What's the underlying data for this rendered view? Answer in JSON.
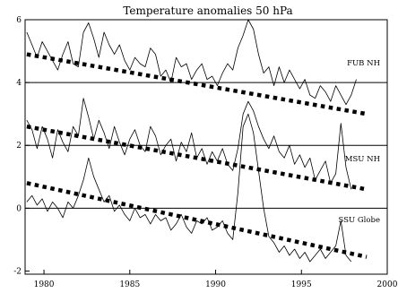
{
  "chart_data": {
    "type": "line",
    "title": "Temperature anomalies 50 hPa",
    "xlabel": "",
    "ylabel": "",
    "xlim": [
      1978.9,
      2000
    ],
    "ylim": [
      -2.1,
      6.0
    ],
    "x_ticks": [
      1980,
      1985,
      1990,
      1995,
      2000
    ],
    "y_ticks": [
      -2,
      0,
      2,
      4,
      6
    ],
    "grid": false,
    "reference_lines": [
      0,
      2,
      4
    ],
    "series": [
      {
        "name": "FUB NH",
        "offset": 4,
        "x": [
          1979.0,
          1979.3,
          1979.6,
          1979.9,
          1980.2,
          1980.5,
          1980.8,
          1981.1,
          1981.4,
          1981.7,
          1982.0,
          1982.3,
          1982.6,
          1982.9,
          1983.2,
          1983.5,
          1983.8,
          1984.1,
          1984.4,
          1984.7,
          1985.0,
          1985.3,
          1985.6,
          1985.9,
          1986.2,
          1986.5,
          1986.8,
          1987.1,
          1987.4,
          1987.7,
          1988.0,
          1988.3,
          1988.6,
          1988.9,
          1989.2,
          1989.5,
          1989.8,
          1990.1,
          1990.4,
          1990.7,
          1991.0,
          1991.3,
          1991.6,
          1991.9,
          1992.2,
          1992.5,
          1992.8,
          1993.1,
          1993.4,
          1993.7,
          1994.0,
          1994.3,
          1994.6,
          1994.9,
          1995.2,
          1995.5,
          1995.8,
          1996.1,
          1996.4,
          1996.7,
          1997.0,
          1997.3,
          1997.6,
          1997.9,
          1998.2
        ],
        "y": [
          5.6,
          5.2,
          4.8,
          5.3,
          5.0,
          4.7,
          4.4,
          4.9,
          5.3,
          4.6,
          4.5,
          5.6,
          5.9,
          5.4,
          4.8,
          5.6,
          5.2,
          4.9,
          5.2,
          4.7,
          4.4,
          4.8,
          4.6,
          4.5,
          5.1,
          4.9,
          4.2,
          4.4,
          4.0,
          4.8,
          4.5,
          4.6,
          4.1,
          4.4,
          4.6,
          4.1,
          4.2,
          3.9,
          4.3,
          4.6,
          4.4,
          5.1,
          5.5,
          6.0,
          5.7,
          4.9,
          4.3,
          4.5,
          3.9,
          4.5,
          4.0,
          4.4,
          4.1,
          3.8,
          4.1,
          3.6,
          3.5,
          3.9,
          3.7,
          3.4,
          3.9,
          3.6,
          3.3,
          3.6,
          4.1
        ]
      },
      {
        "name": "MSU NH",
        "offset": 2,
        "x": [
          1979.0,
          1979.3,
          1979.6,
          1979.9,
          1980.2,
          1980.5,
          1980.8,
          1981.1,
          1981.4,
          1981.7,
          1982.0,
          1982.3,
          1982.6,
          1982.9,
          1983.2,
          1983.5,
          1983.8,
          1984.1,
          1984.4,
          1984.7,
          1985.0,
          1985.3,
          1985.6,
          1985.9,
          1986.2,
          1986.5,
          1986.8,
          1987.1,
          1987.4,
          1987.7,
          1988.0,
          1988.3,
          1988.6,
          1988.9,
          1989.2,
          1989.5,
          1989.8,
          1990.1,
          1990.4,
          1990.7,
          1991.0,
          1991.3,
          1991.6,
          1991.9,
          1992.2,
          1992.5,
          1992.8,
          1993.1,
          1993.4,
          1993.7,
          1994.0,
          1994.3,
          1994.6,
          1994.9,
          1995.2,
          1995.5,
          1995.8,
          1996.1,
          1996.4,
          1996.7,
          1997.0,
          1997.3,
          1997.6,
          1997.9
        ],
        "y": [
          2.8,
          2.5,
          1.9,
          2.6,
          2.2,
          1.6,
          2.5,
          2.1,
          1.8,
          2.6,
          2.3,
          3.5,
          2.9,
          2.2,
          2.8,
          2.4,
          1.9,
          2.6,
          2.1,
          1.7,
          2.2,
          2.5,
          2.0,
          1.8,
          2.6,
          2.3,
          1.7,
          2.0,
          2.2,
          1.5,
          2.1,
          1.8,
          2.4,
          1.6,
          1.9,
          1.4,
          1.8,
          1.5,
          1.9,
          1.4,
          1.2,
          1.9,
          3.0,
          3.4,
          3.1,
          2.6,
          2.2,
          1.9,
          2.3,
          1.8,
          1.6,
          2.0,
          1.4,
          1.7,
          1.3,
          1.6,
          0.9,
          1.2,
          1.5,
          0.8,
          1.1,
          2.7,
          1.3,
          0.6
        ]
      },
      {
        "name": "SSU Globe",
        "offset": 0,
        "x": [
          1979.0,
          1979.3,
          1979.6,
          1979.9,
          1980.2,
          1980.5,
          1980.8,
          1981.1,
          1981.4,
          1981.7,
          1982.0,
          1982.3,
          1982.6,
          1982.9,
          1983.2,
          1983.5,
          1983.8,
          1984.1,
          1984.4,
          1984.7,
          1985.0,
          1985.3,
          1985.6,
          1985.9,
          1986.2,
          1986.5,
          1986.8,
          1987.1,
          1987.4,
          1987.7,
          1988.0,
          1988.3,
          1988.6,
          1988.9,
          1989.2,
          1989.5,
          1989.8,
          1990.1,
          1990.4,
          1990.7,
          1991.0,
          1991.3,
          1991.6,
          1991.9,
          1992.2,
          1992.5,
          1992.8,
          1993.1,
          1993.4,
          1993.7,
          1994.0,
          1994.3,
          1994.6,
          1994.9,
          1995.2,
          1995.5,
          1995.8,
          1996.1,
          1996.4,
          1996.7,
          1997.0,
          1997.3,
          1997.6,
          1997.9
        ],
        "y": [
          0.2,
          0.4,
          0.1,
          0.3,
          -0.1,
          0.2,
          0.0,
          -0.3,
          0.2,
          0.0,
          0.4,
          0.9,
          1.6,
          1.0,
          0.6,
          0.2,
          0.4,
          -0.1,
          0.1,
          -0.2,
          -0.4,
          0.0,
          -0.3,
          -0.2,
          -0.5,
          -0.2,
          -0.4,
          -0.3,
          -0.7,
          -0.5,
          -0.2,
          -0.6,
          -0.8,
          -0.4,
          -0.5,
          -0.3,
          -0.7,
          -0.6,
          -0.4,
          -0.8,
          -1.0,
          0.5,
          2.6,
          3.0,
          2.4,
          1.2,
          0.0,
          -0.9,
          -1.1,
          -1.4,
          -1.2,
          -1.5,
          -1.3,
          -1.6,
          -1.4,
          -1.7,
          -1.5,
          -1.3,
          -1.6,
          -1.4,
          -1.2,
          -0.4,
          -1.5,
          -1.7
        ]
      }
    ],
    "trends": [
      {
        "series": "FUB NH",
        "x": [
          1979.0,
          1998.8
        ],
        "y": [
          4.9,
          3.0
        ]
      },
      {
        "series": "MSU NH",
        "x": [
          1979.0,
          1998.8
        ],
        "y": [
          2.6,
          0.6
        ]
      },
      {
        "series": "SSU Globe",
        "x": [
          1979.0,
          1998.8
        ],
        "y": [
          0.8,
          -1.55
        ]
      }
    ]
  }
}
